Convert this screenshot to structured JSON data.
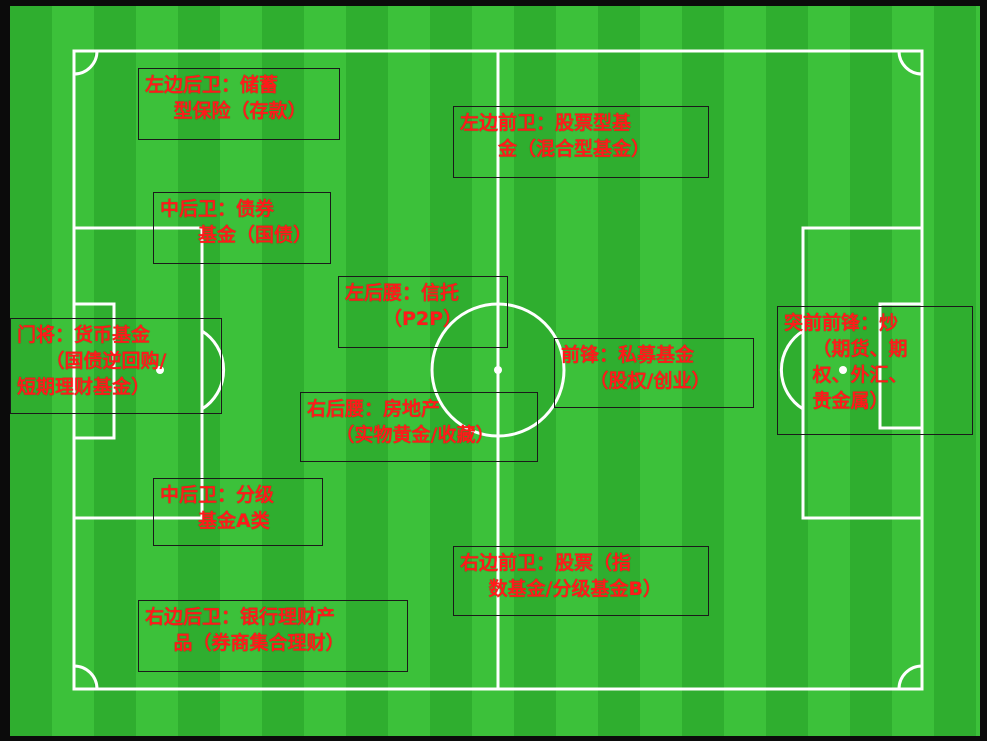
{
  "positions": [
    {
      "id": "left-back",
      "lines": [
        "左边后卫：储蓄",
        "型保险（存款）"
      ]
    },
    {
      "id": "left-midfield",
      "lines": [
        "左边前卫：股票型基",
        "金（混合型基金）"
      ]
    },
    {
      "id": "center-back-1",
      "lines": [
        "中后卫：债券",
        "基金（国债）"
      ]
    },
    {
      "id": "left-defensive-mid",
      "lines": [
        "左后腰：信托",
        "（P2P）"
      ]
    },
    {
      "id": "goalkeeper",
      "lines": [
        "门将：货币基金",
        "（国债逆回购/",
        "短期理财基金）"
      ]
    },
    {
      "id": "forward",
      "lines": [
        "前锋：私募基金",
        "（股权/创业）"
      ]
    },
    {
      "id": "striker",
      "lines": [
        "突前前锋：炒",
        "（期货、期",
        "权、外汇、",
        "贵金属）"
      ]
    },
    {
      "id": "right-defensive-mid",
      "lines": [
        "右后腰：房地产",
        "（实物黄金/收藏）"
      ]
    },
    {
      "id": "center-back-2",
      "lines": [
        "中后卫：分级",
        "基金A类"
      ]
    },
    {
      "id": "right-midfield",
      "lines": [
        "右边前卫：股票（指",
        "数基金/分级基金B）"
      ]
    },
    {
      "id": "right-back",
      "lines": [
        "右边后卫：银行理财产",
        "品（券商集合理财）"
      ]
    }
  ],
  "colors": {
    "label_text": "#ff1a1a",
    "box_border": "#1a1a1a",
    "pitch_stripe_dark": "#2fae2f",
    "pitch_stripe_light": "#3cc13a",
    "pitch_lines": "#ffffff"
  }
}
